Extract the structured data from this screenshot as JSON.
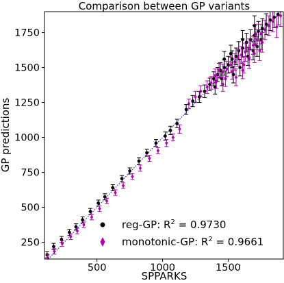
{
  "chart_data": {
    "type": "scatter",
    "title": "Comparison between GP variants",
    "xlabel": "SPPARKS",
    "ylabel": "GP predictions",
    "xlim": [
      100,
      1920
    ],
    "ylim": [
      130,
      1900
    ],
    "x_ticks": [
      500,
      1000,
      1500
    ],
    "y_ticks": [
      250,
      500,
      750,
      1000,
      1250,
      1500,
      1750
    ],
    "grid": false,
    "reference_line": {
      "style": "dotted",
      "color": "#2222cc",
      "from": [
        100,
        100
      ],
      "to": [
        1920,
        1920
      ]
    },
    "legend": {
      "position": "lower-right",
      "entries": [
        {
          "text": "reg-GP: R",
          "sup": "2",
          "suffix": " = 0.9730",
          "marker": "circle",
          "color": "#000000"
        },
        {
          "text": "monotonic-GP: R",
          "sup": "2",
          "suffix": " = 0.9661",
          "marker": "diamond",
          "color": "#b000b0"
        }
      ]
    },
    "series": [
      {
        "name": "reg-GP",
        "marker": "circle",
        "color": "#000000",
        "points": [
          [
            120,
            160,
            22
          ],
          [
            170,
            220,
            22
          ],
          [
            230,
            270,
            22
          ],
          [
            290,
            320,
            22
          ],
          [
            340,
            360,
            22
          ],
          [
            390,
            410,
            22
          ],
          [
            450,
            470,
            22
          ],
          [
            510,
            530,
            22
          ],
          [
            560,
            575,
            22
          ],
          [
            620,
            640,
            22
          ],
          [
            690,
            705,
            22
          ],
          [
            750,
            760,
            22
          ],
          [
            820,
            830,
            25
          ],
          [
            880,
            890,
            25
          ],
          [
            950,
            960,
            25
          ],
          [
            1020,
            1010,
            30
          ],
          [
            1060,
            1050,
            30
          ],
          [
            1110,
            1100,
            30
          ],
          [
            1180,
            1200,
            35
          ],
          [
            1230,
            1260,
            40
          ],
          [
            1280,
            1290,
            40
          ],
          [
            1320,
            1330,
            45
          ],
          [
            1360,
            1380,
            45
          ],
          [
            1390,
            1420,
            50
          ],
          [
            1420,
            1450,
            50
          ],
          [
            1440,
            1480,
            55
          ],
          [
            1470,
            1500,
            55
          ],
          [
            1500,
            1520,
            60
          ],
          [
            1530,
            1560,
            60
          ],
          [
            1560,
            1580,
            60
          ],
          [
            1580,
            1620,
            65
          ],
          [
            1610,
            1640,
            65
          ],
          [
            1640,
            1680,
            65
          ],
          [
            1670,
            1700,
            70
          ],
          [
            1700,
            1730,
            70
          ],
          [
            1730,
            1760,
            70
          ],
          [
            1760,
            1780,
            70
          ],
          [
            1790,
            1810,
            75
          ],
          [
            1820,
            1840,
            75
          ],
          [
            1850,
            1860,
            75
          ],
          [
            1880,
            1880,
            75
          ],
          [
            1470,
            1560,
            55
          ],
          [
            1520,
            1600,
            60
          ],
          [
            1610,
            1700,
            65
          ],
          [
            1650,
            1580,
            65
          ],
          [
            1690,
            1620,
            65
          ],
          [
            1720,
            1650,
            70
          ],
          [
            1400,
            1360,
            50
          ],
          [
            1450,
            1420,
            50
          ],
          [
            1540,
            1450,
            60
          ],
          [
            1590,
            1500,
            60
          ],
          [
            1700,
            1800,
            70
          ],
          [
            1750,
            1700,
            70
          ]
        ]
      },
      {
        "name": "monotonic-GP",
        "marker": "diamond",
        "color": "#b000b0",
        "points": [
          [
            125,
            140,
            20
          ],
          [
            175,
            185,
            20
          ],
          [
            235,
            240,
            20
          ],
          [
            300,
            290,
            20
          ],
          [
            350,
            330,
            20
          ],
          [
            400,
            375,
            20
          ],
          [
            460,
            430,
            20
          ],
          [
            520,
            490,
            20
          ],
          [
            575,
            545,
            20
          ],
          [
            640,
            605,
            20
          ],
          [
            700,
            655,
            20
          ],
          [
            770,
            720,
            20
          ],
          [
            830,
            780,
            22
          ],
          [
            900,
            850,
            22
          ],
          [
            965,
            905,
            22
          ],
          [
            1030,
            960,
            25
          ],
          [
            1080,
            1000,
            25
          ],
          [
            1130,
            1060,
            30
          ],
          [
            1200,
            1240,
            35
          ],
          [
            1250,
            1290,
            40
          ],
          [
            1290,
            1330,
            40
          ],
          [
            1340,
            1360,
            45
          ],
          [
            1370,
            1390,
            45
          ],
          [
            1400,
            1440,
            50
          ],
          [
            1430,
            1480,
            50
          ],
          [
            1460,
            1470,
            55
          ],
          [
            1490,
            1490,
            55
          ],
          [
            1520,
            1520,
            55
          ],
          [
            1550,
            1540,
            60
          ],
          [
            1575,
            1570,
            60
          ],
          [
            1600,
            1590,
            60
          ],
          [
            1630,
            1610,
            65
          ],
          [
            1660,
            1640,
            65
          ],
          [
            1690,
            1660,
            65
          ],
          [
            1720,
            1700,
            70
          ],
          [
            1750,
            1740,
            70
          ],
          [
            1780,
            1770,
            70
          ],
          [
            1810,
            1800,
            70
          ],
          [
            1840,
            1830,
            75
          ],
          [
            1870,
            1790,
            75
          ],
          [
            1900,
            1870,
            75
          ],
          [
            1480,
            1420,
            55
          ],
          [
            1530,
            1470,
            55
          ],
          [
            1620,
            1520,
            60
          ],
          [
            1660,
            1560,
            65
          ],
          [
            1700,
            1600,
            65
          ],
          [
            1740,
            1620,
            70
          ],
          [
            1410,
            1400,
            50
          ],
          [
            1460,
            1380,
            50
          ],
          [
            1560,
            1430,
            60
          ],
          [
            1610,
            1480,
            60
          ],
          [
            1710,
            1740,
            70
          ],
          [
            1760,
            1680,
            70
          ]
        ]
      }
    ]
  }
}
